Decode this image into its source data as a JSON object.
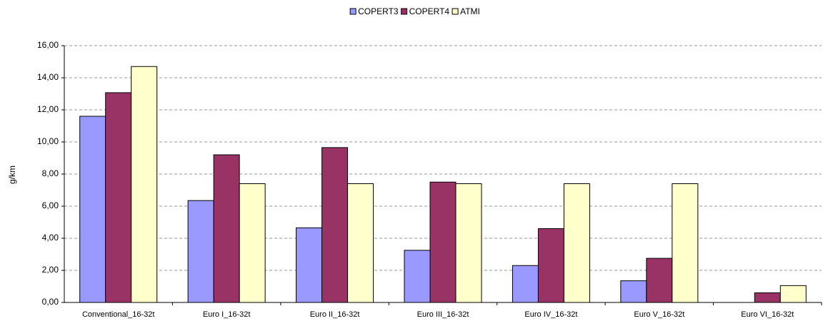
{
  "chart_data": {
    "type": "bar",
    "y_label": "g/km",
    "categories": [
      "Conventional_16-32t",
      "Euro I_16-32t",
      "Euro II_16-32t",
      "Euro III_16-32t",
      "Euro IV_16-32t",
      "Euro V_16-32t",
      "Euro VI_16-32t"
    ],
    "series": [
      {
        "name": "COPERT3",
        "color": "#9999ff",
        "values": [
          11.6,
          6.35,
          4.65,
          3.25,
          2.3,
          1.35,
          0
        ]
      },
      {
        "name": "COPERT4",
        "color": "#993366",
        "values": [
          13.07,
          9.2,
          9.65,
          7.5,
          4.6,
          2.75,
          0.6
        ]
      },
      {
        "name": "ATMI",
        "color": "#ffffcc",
        "values": [
          14.7,
          7.4,
          7.4,
          7.4,
          7.4,
          7.4,
          1.05
        ]
      }
    ],
    "ylim": [
      0,
      16
    ],
    "yticks": [
      {
        "value": 0,
        "label": "0,00"
      },
      {
        "value": 2,
        "label": "2,00"
      },
      {
        "value": 4,
        "label": "4,00"
      },
      {
        "value": 6,
        "label": "6,00"
      },
      {
        "value": 8,
        "label": "8,00"
      },
      {
        "value": 10,
        "label": "10,00"
      },
      {
        "value": 12,
        "label": "12,00"
      },
      {
        "value": 14,
        "label": "14,00"
      },
      {
        "value": 16,
        "label": "16,00"
      }
    ],
    "grid": true,
    "legend": "top"
  }
}
